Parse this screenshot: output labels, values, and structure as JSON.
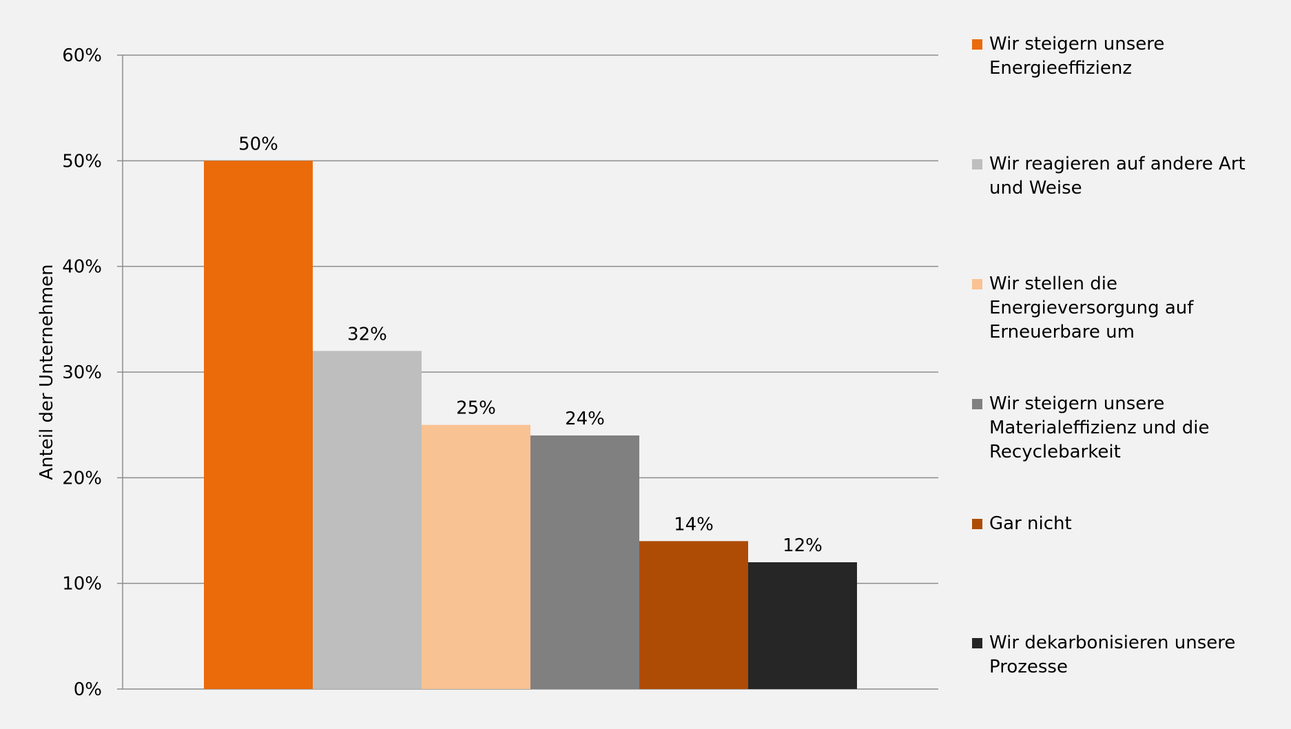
{
  "chart_data": {
    "type": "bar",
    "ylabel": "Anteil der Unternehmen",
    "ylim": [
      0,
      0.6
    ],
    "yticks": [
      "0%",
      "10%",
      "20%",
      "30%",
      "40%",
      "50%",
      "60%"
    ],
    "grid": true,
    "legend_position": "right",
    "series": [
      {
        "name": "Wir steigern unsere\nEnergieeffizienz",
        "value": 0.5,
        "label": "50%",
        "color": "#eb6a0a"
      },
      {
        "name": "Wir reagieren auf andere Art\nund Weise",
        "value": 0.32,
        "label": "32%",
        "color": "#bebebe"
      },
      {
        "name": "Wir stellen die\nEnergieversorgung auf\nErneuerbare um",
        "value": 0.25,
        "label": "25%",
        "color": "#f9c293"
      },
      {
        "name": "Wir steigern unsere\nMaterialeffizienz und die\nRecyclebarkeit",
        "value": 0.24,
        "label": "24%",
        "color": "#808080"
      },
      {
        "name": "Gar nicht",
        "value": 0.14,
        "label": "14%",
        "color": "#ae4c06"
      },
      {
        "name": "Wir dekarbonisieren unsere\nProzesse",
        "value": 0.12,
        "label": "12%",
        "color": "#262626"
      }
    ]
  }
}
